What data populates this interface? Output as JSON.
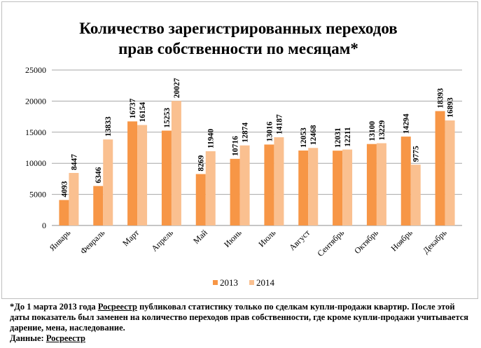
{
  "chart_data": {
    "type": "bar",
    "title_lines": [
      "Количество зарегистрированных переходов",
      "прав собственности по месяцам*"
    ],
    "categories": [
      "Январь",
      "Февраль",
      "Март",
      "Апрель",
      "Май",
      "Июнь",
      "Июль",
      "Август",
      "Сентябрь",
      "Октябрь",
      "Ноябрь",
      "Декабрь"
    ],
    "series": [
      {
        "name": "2013",
        "color": "#f79646",
        "values": [
          4093,
          6346,
          16737,
          15253,
          8269,
          10716,
          13016,
          12053,
          12031,
          13100,
          14294,
          18393
        ]
      },
      {
        "name": "2014",
        "color": "#fac090",
        "values": [
          8447,
          13833,
          16154,
          20027,
          11940,
          12874,
          14187,
          12468,
          12211,
          13229,
          9775,
          16893
        ]
      }
    ],
    "yticks": [
      0,
      5000,
      10000,
      15000,
      20000,
      25000
    ],
    "ylim": [
      0,
      25000
    ],
    "grid": true,
    "legend_position": "bottom"
  },
  "footnote": {
    "line1_pre": "*До 1 марта 2013 года ",
    "line1_link": "Росреестр",
    "line1_post": " публиковал статистику только по сделкам купли-продажи квартир. После этой даты показатель был заменен на количество переходов прав собственности, где кроме купли-продажи учитывается дарение, мена, наследование.",
    "source_label": "Данные: ",
    "source_link": "Росреестр"
  }
}
